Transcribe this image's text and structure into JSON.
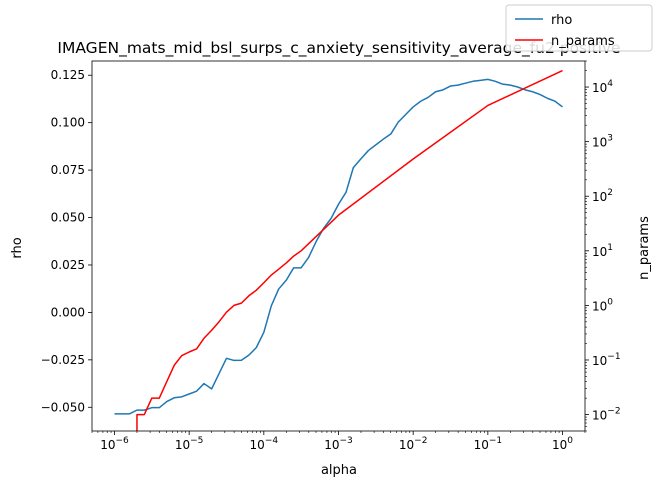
{
  "chart_data": {
    "type": "line",
    "title": "IMAGEN_mats_mid_bsl_surps_c_anxiety_sensitivity_average_fu2 positive",
    "xlabel": "alpha",
    "ylabel_left": "rho",
    "ylabel_right": "n_params",
    "x_scale": "log",
    "xlim": [
      5e-07,
      2.0
    ],
    "ylim_left": [
      -0.0625,
      0.1325
    ],
    "ylim_right_log": [
      0.005,
      30000
    ],
    "x_ticks": [
      {
        "value": 1e-06,
        "base": "10",
        "exp": "−6"
      },
      {
        "value": 1e-05,
        "base": "10",
        "exp": "−5"
      },
      {
        "value": 0.0001,
        "base": "10",
        "exp": "−4"
      },
      {
        "value": 0.001,
        "base": "10",
        "exp": "−3"
      },
      {
        "value": 0.01,
        "base": "10",
        "exp": "−2"
      },
      {
        "value": 0.1,
        "base": "10",
        "exp": "−1"
      },
      {
        "value": 1,
        "base": "10",
        "exp": "0"
      }
    ],
    "y_left_ticks": [
      {
        "value": -0.05,
        "label": "−0.050"
      },
      {
        "value": -0.025,
        "label": "−0.025"
      },
      {
        "value": 0.0,
        "label": "0.000"
      },
      {
        "value": 0.025,
        "label": "0.025"
      },
      {
        "value": 0.05,
        "label": "0.050"
      },
      {
        "value": 0.075,
        "label": "0.075"
      },
      {
        "value": 0.1,
        "label": "0.100"
      },
      {
        "value": 0.125,
        "label": "0.125"
      }
    ],
    "y_right_ticks": [
      {
        "value": 0.01,
        "base": "10",
        "exp": "−2"
      },
      {
        "value": 0.1,
        "base": "10",
        "exp": "−1"
      },
      {
        "value": 1,
        "base": "10",
        "exp": "0"
      },
      {
        "value": 10,
        "base": "10",
        "exp": "1"
      },
      {
        "value": 100,
        "base": "10",
        "exp": "2"
      },
      {
        "value": 1000,
        "base": "10",
        "exp": "3"
      },
      {
        "value": 10000,
        "base": "10",
        "exp": "4"
      }
    ],
    "legend_position": "top-right",
    "series": [
      {
        "name": "rho",
        "color": "#1f77b4",
        "axis": "left",
        "x": [
          1e-06,
          1.26e-06,
          1.58e-06,
          2e-06,
          2.51e-06,
          3.16e-06,
          3.98e-06,
          5.01e-06,
          6.31e-06,
          7.94e-06,
          1e-05,
          1.26e-05,
          1.58e-05,
          2e-05,
          2.51e-05,
          3.16e-05,
          3.98e-05,
          5.01e-05,
          6.31e-05,
          7.94e-05,
          0.0001,
          0.000126,
          0.000158,
          0.0002,
          0.000251,
          0.000316,
          0.000398,
          0.000501,
          0.000631,
          0.000794,
          0.001,
          0.00126,
          0.00158,
          0.002,
          0.00251,
          0.00316,
          0.00398,
          0.00501,
          0.00631,
          0.00794,
          0.01,
          0.0126,
          0.0158,
          0.02,
          0.0251,
          0.0316,
          0.0398,
          0.0501,
          0.0631,
          0.0794,
          0.1,
          0.126,
          0.158,
          0.2,
          0.251,
          0.316,
          0.398,
          0.501,
          0.631,
          0.794,
          1.0
        ],
        "values": [
          -0.0535,
          -0.0535,
          -0.0535,
          -0.0515,
          -0.0515,
          -0.0502,
          -0.0502,
          -0.047,
          -0.045,
          -0.0445,
          -0.043,
          -0.0415,
          -0.0375,
          -0.0403,
          -0.0323,
          -0.0242,
          -0.0253,
          -0.0252,
          -0.0225,
          -0.0185,
          -0.0105,
          0.0035,
          0.0123,
          0.017,
          0.0235,
          0.0235,
          0.029,
          0.0373,
          0.0443,
          0.0495,
          0.057,
          0.0633,
          0.0763,
          0.081,
          0.0853,
          0.0883,
          0.0913,
          0.094,
          0.1003,
          0.1043,
          0.1083,
          0.1113,
          0.1133,
          0.1163,
          0.1173,
          0.1193,
          0.1198,
          0.1208,
          0.1218,
          0.1223,
          0.1228,
          0.1218,
          0.1203,
          0.1198,
          0.1188,
          0.1173,
          0.1163,
          0.1148,
          0.1128,
          0.1113,
          0.1083
        ]
      },
      {
        "name": "n_params",
        "color": "#ff0000",
        "axis": "right",
        "x": [
          2e-06,
          2e-06,
          2.51e-06,
          3.16e-06,
          3.98e-06,
          5.01e-06,
          6.31e-06,
          7.94e-06,
          1e-05,
          1.26e-05,
          1.58e-05,
          2e-05,
          2.51e-05,
          3.16e-05,
          3.98e-05,
          5.01e-05,
          6.31e-05,
          7.94e-05,
          0.0001,
          0.000126,
          0.000158,
          0.0002,
          0.000251,
          0.000316,
          0.001,
          0.01,
          0.1,
          1.0
        ],
        "values": [
          0.0045,
          0.01,
          0.01,
          0.02,
          0.02,
          0.04,
          0.08,
          0.12,
          0.14,
          0.16,
          0.25,
          0.35,
          0.5,
          0.75,
          1.0,
          1.1,
          1.5,
          1.9,
          2.6,
          3.6,
          4.6,
          6.0,
          8.0,
          10.0,
          45,
          480,
          4600,
          20000
        ]
      }
    ]
  }
}
